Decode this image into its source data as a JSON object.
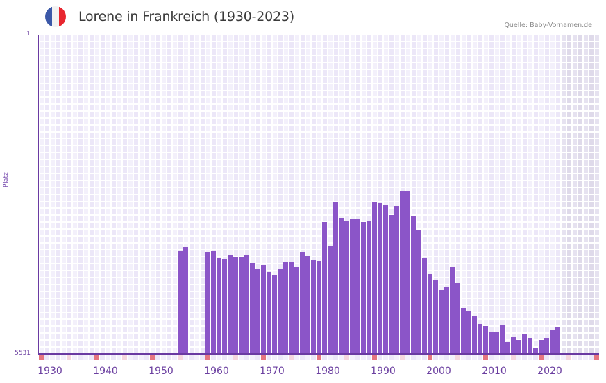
{
  "header": {
    "title": "Lorene in Frankreich (1930-2023)",
    "source": "Quelle: Baby-Vornamen.de",
    "flag": {
      "name": "france-flag",
      "colors": [
        "#3b58a8",
        "#f2f2f2",
        "#e8262f"
      ]
    }
  },
  "colors": {
    "bar": "#8b55c8",
    "axis": "#6a3aa2",
    "grid_a": "#f3f0fb",
    "grid_b": "#ece7f8",
    "future_shade_a": "#e6e2f0",
    "future_shade_b": "#dfdaea",
    "marker_decade": "#e57580",
    "marker_half": "#f5d6de",
    "marker_other_a": "#f3f0fb",
    "marker_other_b": "#ece7f8"
  },
  "chart_data": {
    "type": "bar",
    "title": "Lorene in Frankreich (1930-2023)",
    "xlabel": "",
    "ylabel": "Platz",
    "y_axis_inverted": true,
    "ylim": [
      5531,
      1
    ],
    "ytick_labels": [
      "1",
      "5531"
    ],
    "xtick_labels": [
      "1930",
      "1940",
      "1950",
      "1960",
      "1970",
      "1980",
      "1990",
      "2000",
      "2010",
      "2020"
    ],
    "x_range": [
      1930,
      2030
    ],
    "grid": true,
    "legend": null,
    "categories": [
      1955,
      1956,
      1960,
      1961,
      1962,
      1963,
      1964,
      1965,
      1966,
      1967,
      1968,
      1969,
      1970,
      1971,
      1972,
      1973,
      1974,
      1975,
      1976,
      1977,
      1978,
      1979,
      1980,
      1981,
      1982,
      1983,
      1984,
      1985,
      1986,
      1987,
      1988,
      1989,
      1990,
      1991,
      1992,
      1993,
      1994,
      1995,
      1996,
      1997,
      1998,
      1999,
      2000,
      2001,
      2002,
      2003,
      2004,
      2005,
      2006,
      2007,
      2008,
      2009,
      2010,
      2011,
      2012,
      2013,
      2014,
      2015,
      2016,
      2017,
      2018,
      2019,
      2020,
      2021,
      2022,
      2023
    ],
    "values": [
      3751,
      3679,
      3763,
      3751,
      3872,
      3884,
      3823,
      3848,
      3860,
      3812,
      3956,
      4053,
      3992,
      4113,
      4161,
      4053,
      3932,
      3944,
      4029,
      3763,
      3835,
      3908,
      3920,
      3246,
      3655,
      2897,
      3173,
      3221,
      3185,
      3185,
      3246,
      3233,
      2897,
      2909,
      2957,
      3125,
      2969,
      2704,
      2716,
      3149,
      3390,
      3872,
      4149,
      4245,
      4425,
      4377,
      4029,
      4305,
      4738,
      4786,
      4870,
      5015,
      5051,
      5159,
      5147,
      5039,
      5328,
      5232,
      5292,
      5196,
      5256,
      5436,
      5292,
      5256,
      5111,
      5063
    ]
  },
  "source_text": "Quelle: Baby-Vornamen.de"
}
